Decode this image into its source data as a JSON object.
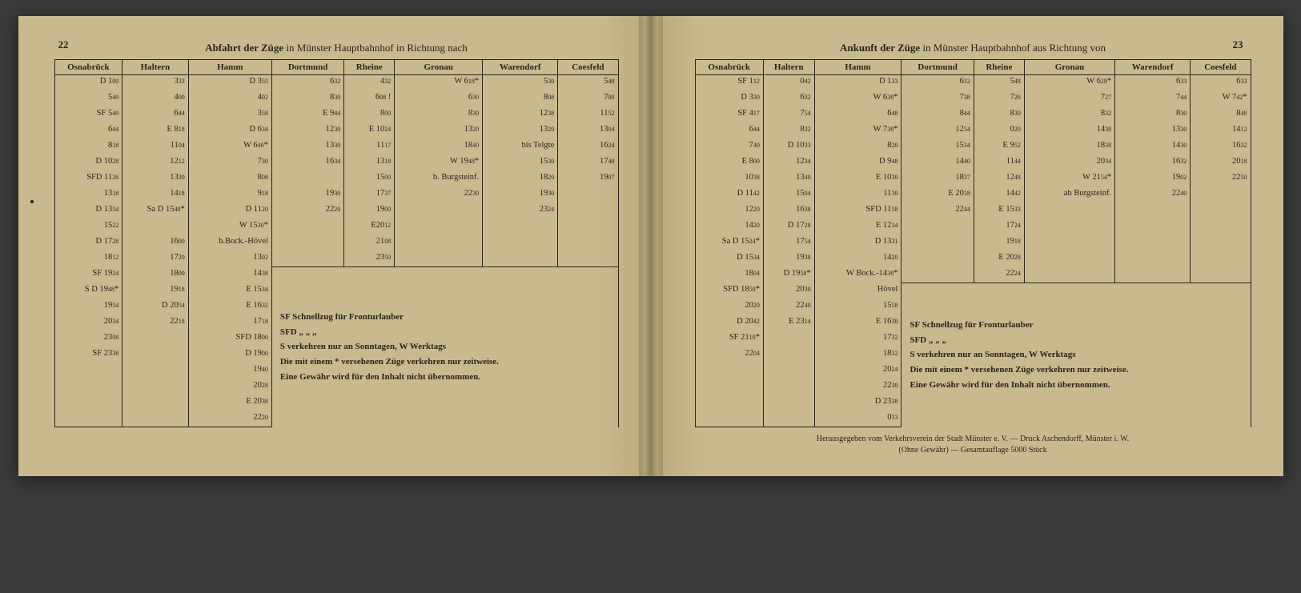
{
  "leftPage": {
    "pageNumber": "22",
    "title_bold": "Abfahrt der Züge",
    "title_rest": " in Münster Hauptbahnhof in Richtung nach",
    "columns": [
      "Osnabrück",
      "Haltern",
      "Hamm",
      "Dortmund",
      "Rheine",
      "Gronau",
      "Warendorf",
      "Coesfeld"
    ],
    "data": {
      "osnabruck": [
        "D 1₀₀",
        "5₄₀",
        "SF 5₄₀",
        "6₄₄",
        "8₁₈",
        "D 10₂₈",
        "SFD 11₂₆",
        "13₁₈",
        "D 13₅₄",
        "15₂₂",
        "D 17₂₈",
        "18₁₂",
        "SF 19₂₄",
        "S   D 19₄₈*",
        "19₅₄",
        "20₃₄",
        "23₀₈",
        "SF 23₃₈"
      ],
      "haltern": [
        "3₃₃",
        "4₀₀",
        "6₄₄",
        "E 8₁₈",
        "11₀₄",
        "12₁₂",
        "13₃₀",
        "14₁₈",
        "Sa  D 15₄₈*",
        "",
        "16₀₀",
        "17₂₀",
        "18₀₀",
        "19₁₈",
        "D 20₅₄",
        "22₁₈"
      ],
      "hamm": [
        "D 3₅₅",
        "4₀₂",
        "3₅₈",
        "D 6₃₄",
        "W       6₄₀*",
        "7₃₀",
        "8₀₈",
        "9₁₈",
        "D 11₂₀",
        "W     15₃₀*",
        "b.Bock.-Hövel",
        "13₀₂",
        "14₃₈",
        "E 15₃₄",
        "E 16₃₂",
        "17₁₈",
        "SFD 18₀₀",
        "D 19₀₀",
        "19₄₀",
        "20₂₈",
        "E 20₃₈",
        "22₂₀"
      ],
      "dortmund": [
        "6₃₂",
        "8₃₀",
        "E 9₄₄",
        "12₃₀",
        "13₃₀",
        "16₃₄",
        "",
        "19₃₀",
        "22₂₀"
      ],
      "rheine": [
        "4₃₂",
        "6₀₈ !",
        "8₀₀",
        "E 10₂₄",
        "11₁₇",
        "13₁₈",
        "15₀₀",
        "17₃₇",
        "19₀₀",
        "E20₁₂",
        "21₀₈",
        "23₅₀"
      ],
      "gronau": [
        "W        6₁₈*",
        "6₃₀",
        "8₃₀",
        "13₂₀",
        "18₄₀",
        "W     19₄₈*",
        "b. Burgsteinf.",
        "22₃₀"
      ],
      "warendorf": [
        "5₃₀",
        "8₀₈",
        "12₃₈",
        "13₂₀",
        "bis Telgte",
        "15₃₀",
        "18₂₀",
        "19₃₀",
        "23₂₄"
      ],
      "coesfeld": [
        "5₄₈",
        "7₀₀",
        "11₅₂",
        "13₀₄",
        "16₂₄",
        "17₄₀",
        "19₀₇"
      ]
    },
    "notes": [
      "SF Schnellzug für Fronturlauber",
      "SFD        „          „           „",
      "S verkehren nur an Sonntagen, W Werktags",
      "Die mit einem * versehenen Züge verkehren nur zeitweise.",
      "Eine Gewähr wird für den Inhalt nicht übernommen."
    ]
  },
  "rightPage": {
    "pageNumber": "23",
    "title_bold": "Ankunft der Züge",
    "title_rest": " in Münster Hauptbahnhof aus Richtung von",
    "columns": [
      "Osnabrück",
      "Haltern",
      "Hamm",
      "Dortmund",
      "Rheine",
      "Gronau",
      "Warendorf",
      "Coesfeld"
    ],
    "data": {
      "osnabruck": [
        "SF 1₁₂",
        "D 3₃₀",
        "SF 4₁₇",
        "6₄₄",
        "7₄₀",
        "E 8₀₀",
        "10₃₈",
        "D 11₄₂",
        "12₂₀",
        "14₂₀",
        "Sa   D 15₂₄*",
        "D 15₃₄",
        "18₀₄",
        "SFD 18₅₀*",
        "20₂₀",
        "D 20₄₂",
        "SF 21₁₀*",
        "22₀₄"
      ],
      "haltern": [
        "0₄₂",
        "6₃₂",
        "7₅₄",
        "8₃₂",
        "D 10₃₃",
        "12₃₄",
        "13₄₀",
        "15₀₄",
        "16₃₈",
        "D 17₂₈",
        "17₅₄",
        "19₃₈",
        "D 19₅₈*",
        "20₃₀",
        "22₄₀",
        "E 23₁₄"
      ],
      "hamm": [
        "D 1₃₃",
        "W       6₃₈*",
        "6₄₈",
        "W       7₃₈*",
        "8₂₀",
        "D 9₄₈",
        "E 10₃₀",
        "11₃₀",
        "SFD 11₅₈",
        "E 12₃₄",
        "D 13₃₁",
        "14₂₀",
        "W Bock.-14₃₈*",
        "  Hövel",
        "15₅₈",
        "E 16₃₀",
        "17₃₂",
        "18₃₂",
        "20₂₄",
        "22₃₀",
        "D 23₃₈",
        "0₃₃"
      ],
      "dortmund": [
        "6₃₂",
        "7₃₈",
        "8₄₄",
        "12₅₄",
        "15₃₄",
        "14₄₀",
        "18₃₇",
        "E 20₁₈",
        "22₄₄"
      ],
      "rheine": [
        "5₄₈",
        "7₂₆",
        "8₃₀",
        "0₂₀",
        "E 9₅₂",
        "11₄₄",
        "12₄₈",
        "14₄₂",
        "E 15₃₃",
        "17₂₄",
        "19₁₈",
        "E 20₂₈",
        "22₂₄"
      ],
      "gronau": [
        "W        6₂₈*",
        "7₂₇",
        "8₃₂",
        "14₃₈",
        "18₃₈",
        "20₃₄",
        "W      21₅₄*",
        "ab Burgsteinf."
      ],
      "warendorf": [
        "6₃₃",
        "7₄₄",
        "8₃₀",
        "13₃₀",
        "14₃₀",
        "16₃₂",
        "19₀₂",
        "22₄₀"
      ],
      "coesfeld": [
        "6₃₃",
        "W       7₄₂*",
        "8₄₈",
        "14₁₂",
        "16₃₂",
        "20₁₈",
        "22₅₀"
      ]
    },
    "notes": [
      "SF Schnellzug für Fronturlauber",
      "SFD        „          „           „",
      "S verkehren nur an Sonntagen, W Werktags",
      "Die mit einem * versehenen Züge verkehren nur zeitweise.",
      "Eine Gewähr wird für den Inhalt nicht übernommen."
    ],
    "footer": "Herausgegeben vom Verkehrsverein der Stadt Münster e. V.   —   Druck Aschendorff, Münster i. W.\n(Ohne Gewähr)   —   Gesamtauflage 5000 Stück"
  },
  "style": {
    "paper_color": "#c9b98f",
    "ink_color": "#2a2518",
    "bg_color": "#3a3a3a"
  }
}
